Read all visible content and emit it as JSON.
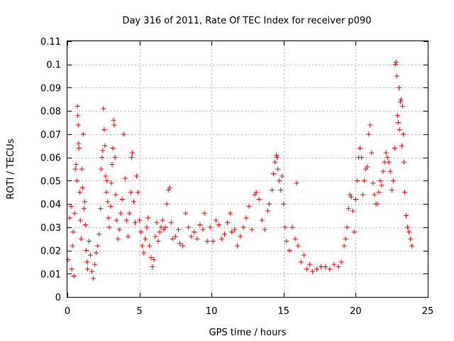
{
  "chart_data": {
    "type": "scatter",
    "title": "Day 316 of 2011, Rate Of TEC Index for receiver p090",
    "xlabel": "GPS time / hours",
    "ylabel": "ROTI / TECUs",
    "xlim": [
      0,
      25
    ],
    "ylim": [
      0,
      0.11
    ],
    "xticks": [
      0,
      5,
      10,
      15,
      20,
      25
    ],
    "xtick_labels": [
      "0",
      "5",
      "10",
      "15",
      "20",
      "25"
    ],
    "yticks": [
      0,
      0.01,
      0.02,
      0.03,
      0.04,
      0.05,
      0.06,
      0.07,
      0.08,
      0.09,
      0.1,
      0.11
    ],
    "ytick_labels": [
      "0",
      "0.01",
      "0.02",
      "0.03",
      "0.04",
      "0.05",
      "0.06",
      "0.07",
      "0.08",
      "0.09",
      "0.1",
      "0.11"
    ],
    "grid": true,
    "marker": "plus",
    "color": "#ff0000",
    "series": [
      {
        "points": [
          [
            0.05,
            0.016
          ],
          [
            0.15,
            0.034
          ],
          [
            0.25,
            0.039
          ],
          [
            0.3,
            0.012
          ],
          [
            0.35,
            0.022
          ],
          [
            0.4,
            0.028
          ],
          [
            0.45,
            0.009
          ],
          [
            0.5,
            0.036
          ],
          [
            0.55,
            0.055
          ],
          [
            0.6,
            0.057
          ],
          [
            0.65,
            0.05
          ],
          [
            0.7,
            0.082
          ],
          [
            0.72,
            0.078
          ],
          [
            0.75,
            0.074
          ],
          [
            0.78,
            0.066
          ],
          [
            0.8,
            0.064
          ],
          [
            0.85,
            0.045
          ],
          [
            0.9,
            0.033
          ],
          [
            0.95,
            0.025
          ],
          [
            1.0,
            0.055
          ],
          [
            1.05,
            0.047
          ],
          [
            1.1,
            0.07
          ],
          [
            1.15,
            0.038
          ],
          [
            1.2,
            0.041
          ],
          [
            1.25,
            0.031
          ],
          [
            1.3,
            0.02
          ],
          [
            1.35,
            0.015
          ],
          [
            1.4,
            0.012
          ],
          [
            1.5,
            0.024
          ],
          [
            1.6,
            0.018
          ],
          [
            1.7,
            0.011
          ],
          [
            1.8,
            0.008
          ],
          [
            1.9,
            0.014
          ],
          [
            2.0,
            0.019
          ],
          [
            2.1,
            0.022
          ],
          [
            2.2,
            0.027
          ],
          [
            2.3,
            0.038
          ],
          [
            2.35,
            0.055
          ],
          [
            2.4,
            0.06
          ],
          [
            2.45,
            0.063
          ],
          [
            2.5,
            0.081
          ],
          [
            2.55,
            0.072
          ],
          [
            2.6,
            0.065
          ],
          [
            2.65,
            0.052
          ],
          [
            2.7,
            0.045
          ],
          [
            2.75,
            0.05
          ],
          [
            2.8,
            0.041
          ],
          [
            2.85,
            0.034
          ],
          [
            2.9,
            0.03
          ],
          [
            3.0,
            0.039
          ],
          [
            3.05,
            0.049
          ],
          [
            3.1,
            0.057
          ],
          [
            3.15,
            0.064
          ],
          [
            3.2,
            0.076
          ],
          [
            3.25,
            0.074
          ],
          [
            3.3,
            0.06
          ],
          [
            3.35,
            0.044
          ],
          [
            3.4,
            0.033
          ],
          [
            3.5,
            0.025
          ],
          [
            3.6,
            0.029
          ],
          [
            3.7,
            0.036
          ],
          [
            3.8,
            0.042
          ],
          [
            3.9,
            0.07
          ],
          [
            4.0,
            0.051
          ],
          [
            4.1,
            0.033
          ],
          [
            4.2,
            0.026
          ],
          [
            4.3,
            0.036
          ],
          [
            4.4,
            0.045
          ],
          [
            4.45,
            0.06
          ],
          [
            4.5,
            0.062
          ],
          [
            4.6,
            0.041
          ],
          [
            4.7,
            0.032
          ],
          [
            4.8,
            0.052
          ],
          [
            4.9,
            0.045
          ],
          [
            5.0,
            0.033
          ],
          [
            5.1,
            0.028
          ],
          [
            5.2,
            0.022
          ],
          [
            5.3,
            0.019
          ],
          [
            5.4,
            0.025
          ],
          [
            5.5,
            0.03
          ],
          [
            5.6,
            0.034
          ],
          [
            5.7,
            0.022
          ],
          [
            5.8,
            0.017
          ],
          [
            5.9,
            0.013
          ],
          [
            6.0,
            0.016
          ],
          [
            6.1,
            0.026
          ],
          [
            6.2,
            0.032
          ],
          [
            6.3,
            0.024
          ],
          [
            6.4,
            0.028
          ],
          [
            6.5,
            0.03
          ],
          [
            6.6,
            0.033
          ],
          [
            6.7,
            0.029
          ],
          [
            6.8,
            0.03
          ],
          [
            6.9,
            0.04
          ],
          [
            7.0,
            0.046
          ],
          [
            7.1,
            0.047
          ],
          [
            7.2,
            0.032
          ],
          [
            7.3,
            0.025
          ],
          [
            7.5,
            0.026
          ],
          [
            7.7,
            0.029
          ],
          [
            7.8,
            0.023
          ],
          [
            8.0,
            0.022
          ],
          [
            8.2,
            0.036
          ],
          [
            8.4,
            0.03
          ],
          [
            8.6,
            0.026
          ],
          [
            8.8,
            0.028
          ],
          [
            9.0,
            0.025
          ],
          [
            9.2,
            0.031
          ],
          [
            9.4,
            0.029
          ],
          [
            9.5,
            0.036
          ],
          [
            9.7,
            0.024
          ],
          [
            9.9,
            0.03
          ],
          [
            10.1,
            0.024
          ],
          [
            10.3,
            0.033
          ],
          [
            10.5,
            0.031
          ],
          [
            10.7,
            0.025
          ],
          [
            10.9,
            0.027
          ],
          [
            11.1,
            0.032
          ],
          [
            11.3,
            0.036
          ],
          [
            11.4,
            0.028
          ],
          [
            11.6,
            0.029
          ],
          [
            11.8,
            0.022
          ],
          [
            12.0,
            0.026
          ],
          [
            12.2,
            0.03
          ],
          [
            12.4,
            0.034
          ],
          [
            12.6,
            0.039
          ],
          [
            12.8,
            0.029
          ],
          [
            13.0,
            0.044
          ],
          [
            13.1,
            0.045
          ],
          [
            13.3,
            0.042
          ],
          [
            13.5,
            0.033
          ],
          [
            13.7,
            0.029
          ],
          [
            13.9,
            0.037
          ],
          [
            14.0,
            0.04
          ],
          [
            14.2,
            0.046
          ],
          [
            14.3,
            0.053
          ],
          [
            14.4,
            0.058
          ],
          [
            14.5,
            0.061
          ],
          [
            14.55,
            0.06
          ],
          [
            14.6,
            0.055
          ],
          [
            14.7,
            0.05
          ],
          [
            14.8,
            0.046
          ],
          [
            14.9,
            0.052
          ],
          [
            15.0,
            0.04
          ],
          [
            15.1,
            0.03
          ],
          [
            15.2,
            0.024
          ],
          [
            15.4,
            0.02
          ],
          [
            15.6,
            0.03
          ],
          [
            15.8,
            0.025
          ],
          [
            15.9,
            0.049
          ],
          [
            16.0,
            0.022
          ],
          [
            16.2,
            0.015
          ],
          [
            16.4,
            0.018
          ],
          [
            16.6,
            0.012
          ],
          [
            16.8,
            0.014
          ],
          [
            17.0,
            0.011
          ],
          [
            17.3,
            0.012
          ],
          [
            17.6,
            0.013
          ],
          [
            17.9,
            0.013
          ],
          [
            18.2,
            0.012
          ],
          [
            18.5,
            0.014
          ],
          [
            18.8,
            0.013
          ],
          [
            19.0,
            0.015
          ],
          [
            19.2,
            0.022
          ],
          [
            19.3,
            0.025
          ],
          [
            19.4,
            0.03
          ],
          [
            19.5,
            0.038
          ],
          [
            19.6,
            0.044
          ],
          [
            19.7,
            0.043
          ],
          [
            19.8,
            0.037
          ],
          [
            19.9,
            0.028
          ],
          [
            20.0,
            0.042
          ],
          [
            20.1,
            0.05
          ],
          [
            20.2,
            0.06
          ],
          [
            20.3,
            0.064
          ],
          [
            20.4,
            0.06
          ],
          [
            20.5,
            0.044
          ],
          [
            20.6,
            0.05
          ],
          [
            20.7,
            0.055
          ],
          [
            20.8,
            0.056
          ],
          [
            20.9,
            0.07
          ],
          [
            21.0,
            0.074
          ],
          [
            21.1,
            0.062
          ],
          [
            21.2,
            0.049
          ],
          [
            21.3,
            0.044
          ],
          [
            21.4,
            0.04
          ],
          [
            21.5,
            0.04
          ],
          [
            21.6,
            0.045
          ],
          [
            21.7,
            0.05
          ],
          [
            21.8,
            0.048
          ],
          [
            21.9,
            0.054
          ],
          [
            22.0,
            0.058
          ],
          [
            22.1,
            0.062
          ],
          [
            22.2,
            0.06
          ],
          [
            22.3,
            0.058
          ],
          [
            22.4,
            0.054
          ],
          [
            22.5,
            0.046
          ],
          [
            22.6,
            0.05
          ],
          [
            22.7,
            0.064
          ],
          [
            22.75,
            0.1
          ],
          [
            22.8,
            0.101
          ],
          [
            22.85,
            0.095
          ],
          [
            22.9,
            0.078
          ],
          [
            22.95,
            0.075
          ],
          [
            23.0,
            0.09
          ],
          [
            23.05,
            0.072
          ],
          [
            23.1,
            0.084
          ],
          [
            23.15,
            0.085
          ],
          [
            23.2,
            0.065
          ],
          [
            23.25,
            0.082
          ],
          [
            23.3,
            0.07
          ],
          [
            23.35,
            0.058
          ],
          [
            23.4,
            0.045
          ],
          [
            23.5,
            0.035
          ],
          [
            23.6,
            0.03
          ],
          [
            23.7,
            0.028
          ],
          [
            23.8,
            0.025
          ],
          [
            23.9,
            0.022
          ]
        ]
      }
    ]
  }
}
